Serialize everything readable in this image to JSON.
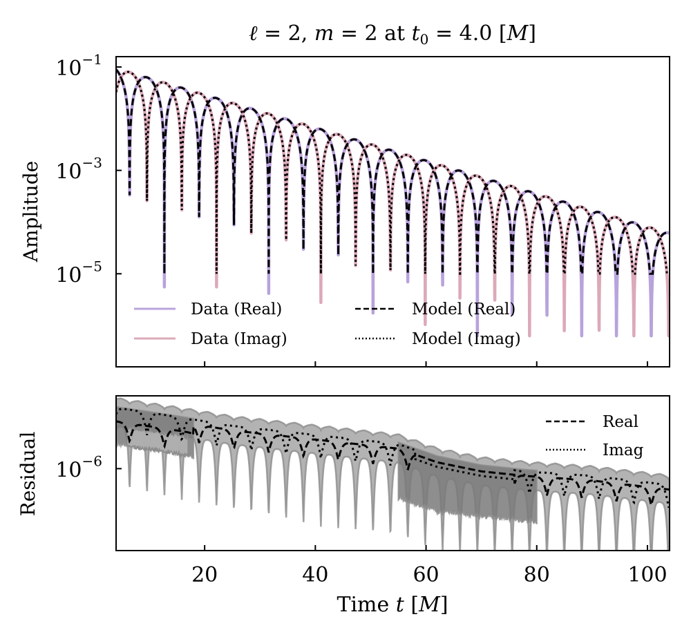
{
  "chart_data": [
    {
      "type": "line",
      "panel": "top",
      "title": "ℓ = 2, m = 2 at t₀ = 4.0 [M]",
      "title_parts": {
        "ell": "ℓ",
        "eq1": " = 2, ",
        "m": "m",
        "eq2": " = 2  at  ",
        "t": "t",
        "sub": "0",
        "eq3": " = 4.0 [",
        "M": "M",
        "close": "]"
      },
      "xlabel": "",
      "ylabel": "Amplitude",
      "yscale": "log",
      "xlim": [
        4,
        104
      ],
      "ylim_log10": [
        -6.8,
        -0.8
      ],
      "yticks": [
        {
          "log10": -1,
          "base": "10",
          "exp": "−1"
        },
        {
          "log10": -3,
          "base": "10",
          "exp": "−3"
        },
        {
          "log10": -5,
          "base": "10",
          "exp": "−5"
        }
      ],
      "xticks": [
        20,
        40,
        60,
        80,
        100
      ],
      "model": {
        "description": "damped sinusoid |A e^{-(t-t0)/tau} cos/sin(omega (t - t0) + phi)|",
        "amplitude": 0.095,
        "t0": 4.0,
        "tau": 13.6,
        "omega": 0.5,
        "phase": 0.35
      },
      "series": [
        {
          "name": "Data (Real)",
          "style": "solid",
          "color": "#b8a3dc"
        },
        {
          "name": "Data (Imag)",
          "style": "solid",
          "color": "#dca9b8"
        },
        {
          "name": "Model (Real)",
          "style": "dashed",
          "color": "#000000"
        },
        {
          "name": "Model (Imag)",
          "style": "dotted",
          "color": "#000000"
        }
      ],
      "legend": {
        "placement": "lower-left",
        "columns": 2,
        "entries": [
          "Data (Real)",
          "Data (Imag)",
          "Model (Real)",
          "Model (Imag)"
        ]
      }
    },
    {
      "type": "area",
      "panel": "bottom",
      "xlabel": "Time t [M]",
      "xlabel_parts": {
        "pre": "Time ",
        "t": "t",
        "mid": " [",
        "M": "M",
        "post": "]"
      },
      "ylabel": "Residual",
      "yscale": "log",
      "xlim": [
        4,
        104
      ],
      "ylim_log10": [
        -6.9,
        -5.2
      ],
      "yticks": [
        {
          "log10": -6,
          "base": "10",
          "exp": "−6"
        }
      ],
      "xticks": [
        {
          "value": 20,
          "label": "20"
        },
        {
          "value": 40,
          "label": "40"
        },
        {
          "value": 60,
          "label": "60"
        },
        {
          "value": 80,
          "label": "80"
        },
        {
          "value": 100,
          "label": "100"
        }
      ],
      "residual_envelope_log10": {
        "t": [
          4,
          15,
          25,
          40,
          55,
          62,
          70,
          78,
          90,
          104
        ],
        "upper": [
          -5.3,
          -5.4,
          -5.5,
          -5.6,
          -5.7,
          -5.85,
          -5.95,
          -6.0,
          -6.05,
          -6.15
        ],
        "lower": [
          -5.75,
          -5.85,
          -6.0,
          -6.15,
          -6.3,
          -6.45,
          -6.5,
          -6.55,
          -6.6,
          -6.7
        ]
      },
      "series": [
        {
          "name": "Real",
          "style": "dashed",
          "color": "#000000"
        },
        {
          "name": "Imag",
          "style": "dotted",
          "color": "#000000"
        }
      ],
      "band_colors": {
        "light": "#b3b3b3",
        "dark": "#7a7a7a",
        "edge": "#8c8c8c"
      },
      "legend": {
        "placement": "top-right",
        "entries": [
          "Real",
          "Imag"
        ]
      }
    }
  ]
}
